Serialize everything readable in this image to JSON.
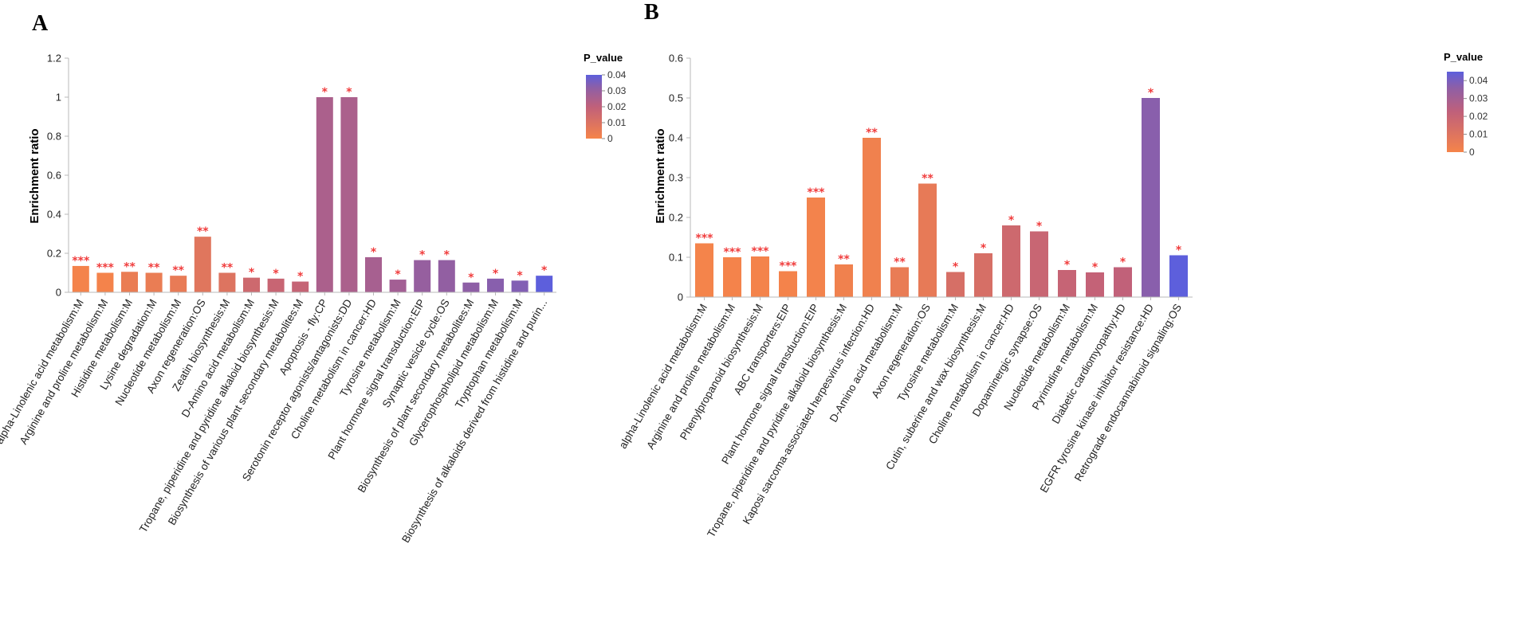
{
  "chart_data": [
    {
      "panel": "A",
      "type": "bar",
      "title": "",
      "xlabel": "",
      "ylabel": "Enrichment ratio",
      "ylim": [
        0,
        1.2
      ],
      "yticks": [
        "0",
        "0.2",
        "0.4",
        "0.6",
        "0.8",
        "1",
        "1.2"
      ],
      "grid": false,
      "legend": {
        "title": "P_value",
        "placement": "right",
        "ticks": [
          "0",
          "0.01",
          "0.02",
          "0.03",
          "0.04"
        ],
        "max": 0.04
      },
      "categories": [
        "alpha-Linolenic acid metabolism:M",
        "Arginine and proline metabolism:M",
        "Histidine metabolism:M",
        "Lysine degradation:M",
        "Nucleotide metabolism:M",
        "Axon regeneration:OS",
        "Zeatin biosynthesis:M",
        "D-Amino acid metabolism:M",
        "Tropane, piperidine and pyridine alkaloid biosynthesis:M",
        "Biosynthesis of various plant secondary metabolites:M",
        "Apoptosis - fly:CP",
        "Serotonin receptor agonists/antagonists:DD",
        "Choline metabolism in cancer:HD",
        "Tyrosine metabolism:M",
        "Plant hormone signal transduction:EIP",
        "Synaptic vesicle cycle:OS",
        "Biosynthesis of plant secondary metabolites:M",
        "Glycerophospholipid metabolism:M",
        "Tryptophan metabolism:M",
        "Biosynthesis of alkaloids derived from histidine and purin..."
      ],
      "values": [
        0.135,
        0.1,
        0.105,
        0.1,
        0.085,
        0.285,
        0.1,
        0.075,
        0.07,
        0.055,
        1.0,
        1.0,
        0.18,
        0.065,
        0.165,
        0.165,
        0.05,
        0.07,
        0.06,
        0.085
      ],
      "p_values": [
        0.0003,
        0.0004,
        0.004,
        0.004,
        0.005,
        0.008,
        0.009,
        0.015,
        0.017,
        0.018,
        0.025,
        0.025,
        0.026,
        0.027,
        0.03,
        0.031,
        0.032,
        0.033,
        0.034,
        0.04
      ],
      "significance": [
        "***",
        "***",
        "**",
        "**",
        "**",
        "**",
        "**",
        "*",
        "*",
        "*",
        "*",
        "*",
        "*",
        "*",
        "*",
        "*",
        "*",
        "*",
        "*",
        "*"
      ]
    },
    {
      "panel": "B",
      "type": "bar",
      "title": "",
      "xlabel": "",
      "ylabel": "Enrichment ratio",
      "ylim": [
        0,
        0.6
      ],
      "yticks": [
        "0",
        "0.1",
        "0.2",
        "0.3",
        "0.4",
        "0.5",
        "0.6"
      ],
      "grid": false,
      "legend": {
        "title": "P_value",
        "placement": "right",
        "ticks": [
          "0",
          "0.01",
          "0.02",
          "0.03",
          "0.04"
        ],
        "max": 0.045
      },
      "categories": [
        "alpha-Linolenic acid metabolism:M",
        "Arginine and proline metabolism:M",
        "Phenylpropanoid biosynthesis:M",
        "ABC transporters:EIP",
        "Plant hormone signal transduction:EIP",
        "Tropane, piperidine and pyridine alkaloid biosynthesis:M",
        "Kaposi sarcoma-associated herpesvirus infection:HD",
        "D-Amino acid metabolism:M",
        "Axon regeneration:OS",
        "Tyrosine metabolism:M",
        "Cutin, suberine and wax biosynthesis:M",
        "Choline metabolism in cancer:HD",
        "Dopaminergic synapse:OS",
        "Nucleotide metabolism:M",
        "Pyrimidine metabolism:M",
        "Diabetic cardiomyopathy:HD",
        "EGFR tyrosine kinase inhibitor resistance:HD",
        "Retrograde endocannabinoid signaling:OS"
      ],
      "values": [
        0.135,
        0.1,
        0.102,
        0.065,
        0.25,
        0.082,
        0.4,
        0.075,
        0.285,
        0.063,
        0.11,
        0.18,
        0.165,
        0.068,
        0.062,
        0.075,
        0.5,
        0.105
      ],
      "p_values": [
        0.0003,
        0.0004,
        0.0005,
        0.0006,
        0.0008,
        0.002,
        0.002,
        0.005,
        0.006,
        0.013,
        0.013,
        0.017,
        0.019,
        0.02,
        0.021,
        0.022,
        0.037,
        0.045
      ],
      "significance": [
        "***",
        "***",
        "***",
        "***",
        "***",
        "**",
        "**",
        "**",
        "**",
        "*",
        "*",
        "*",
        "*",
        "*",
        "*",
        "*",
        "*",
        "*"
      ]
    }
  ]
}
